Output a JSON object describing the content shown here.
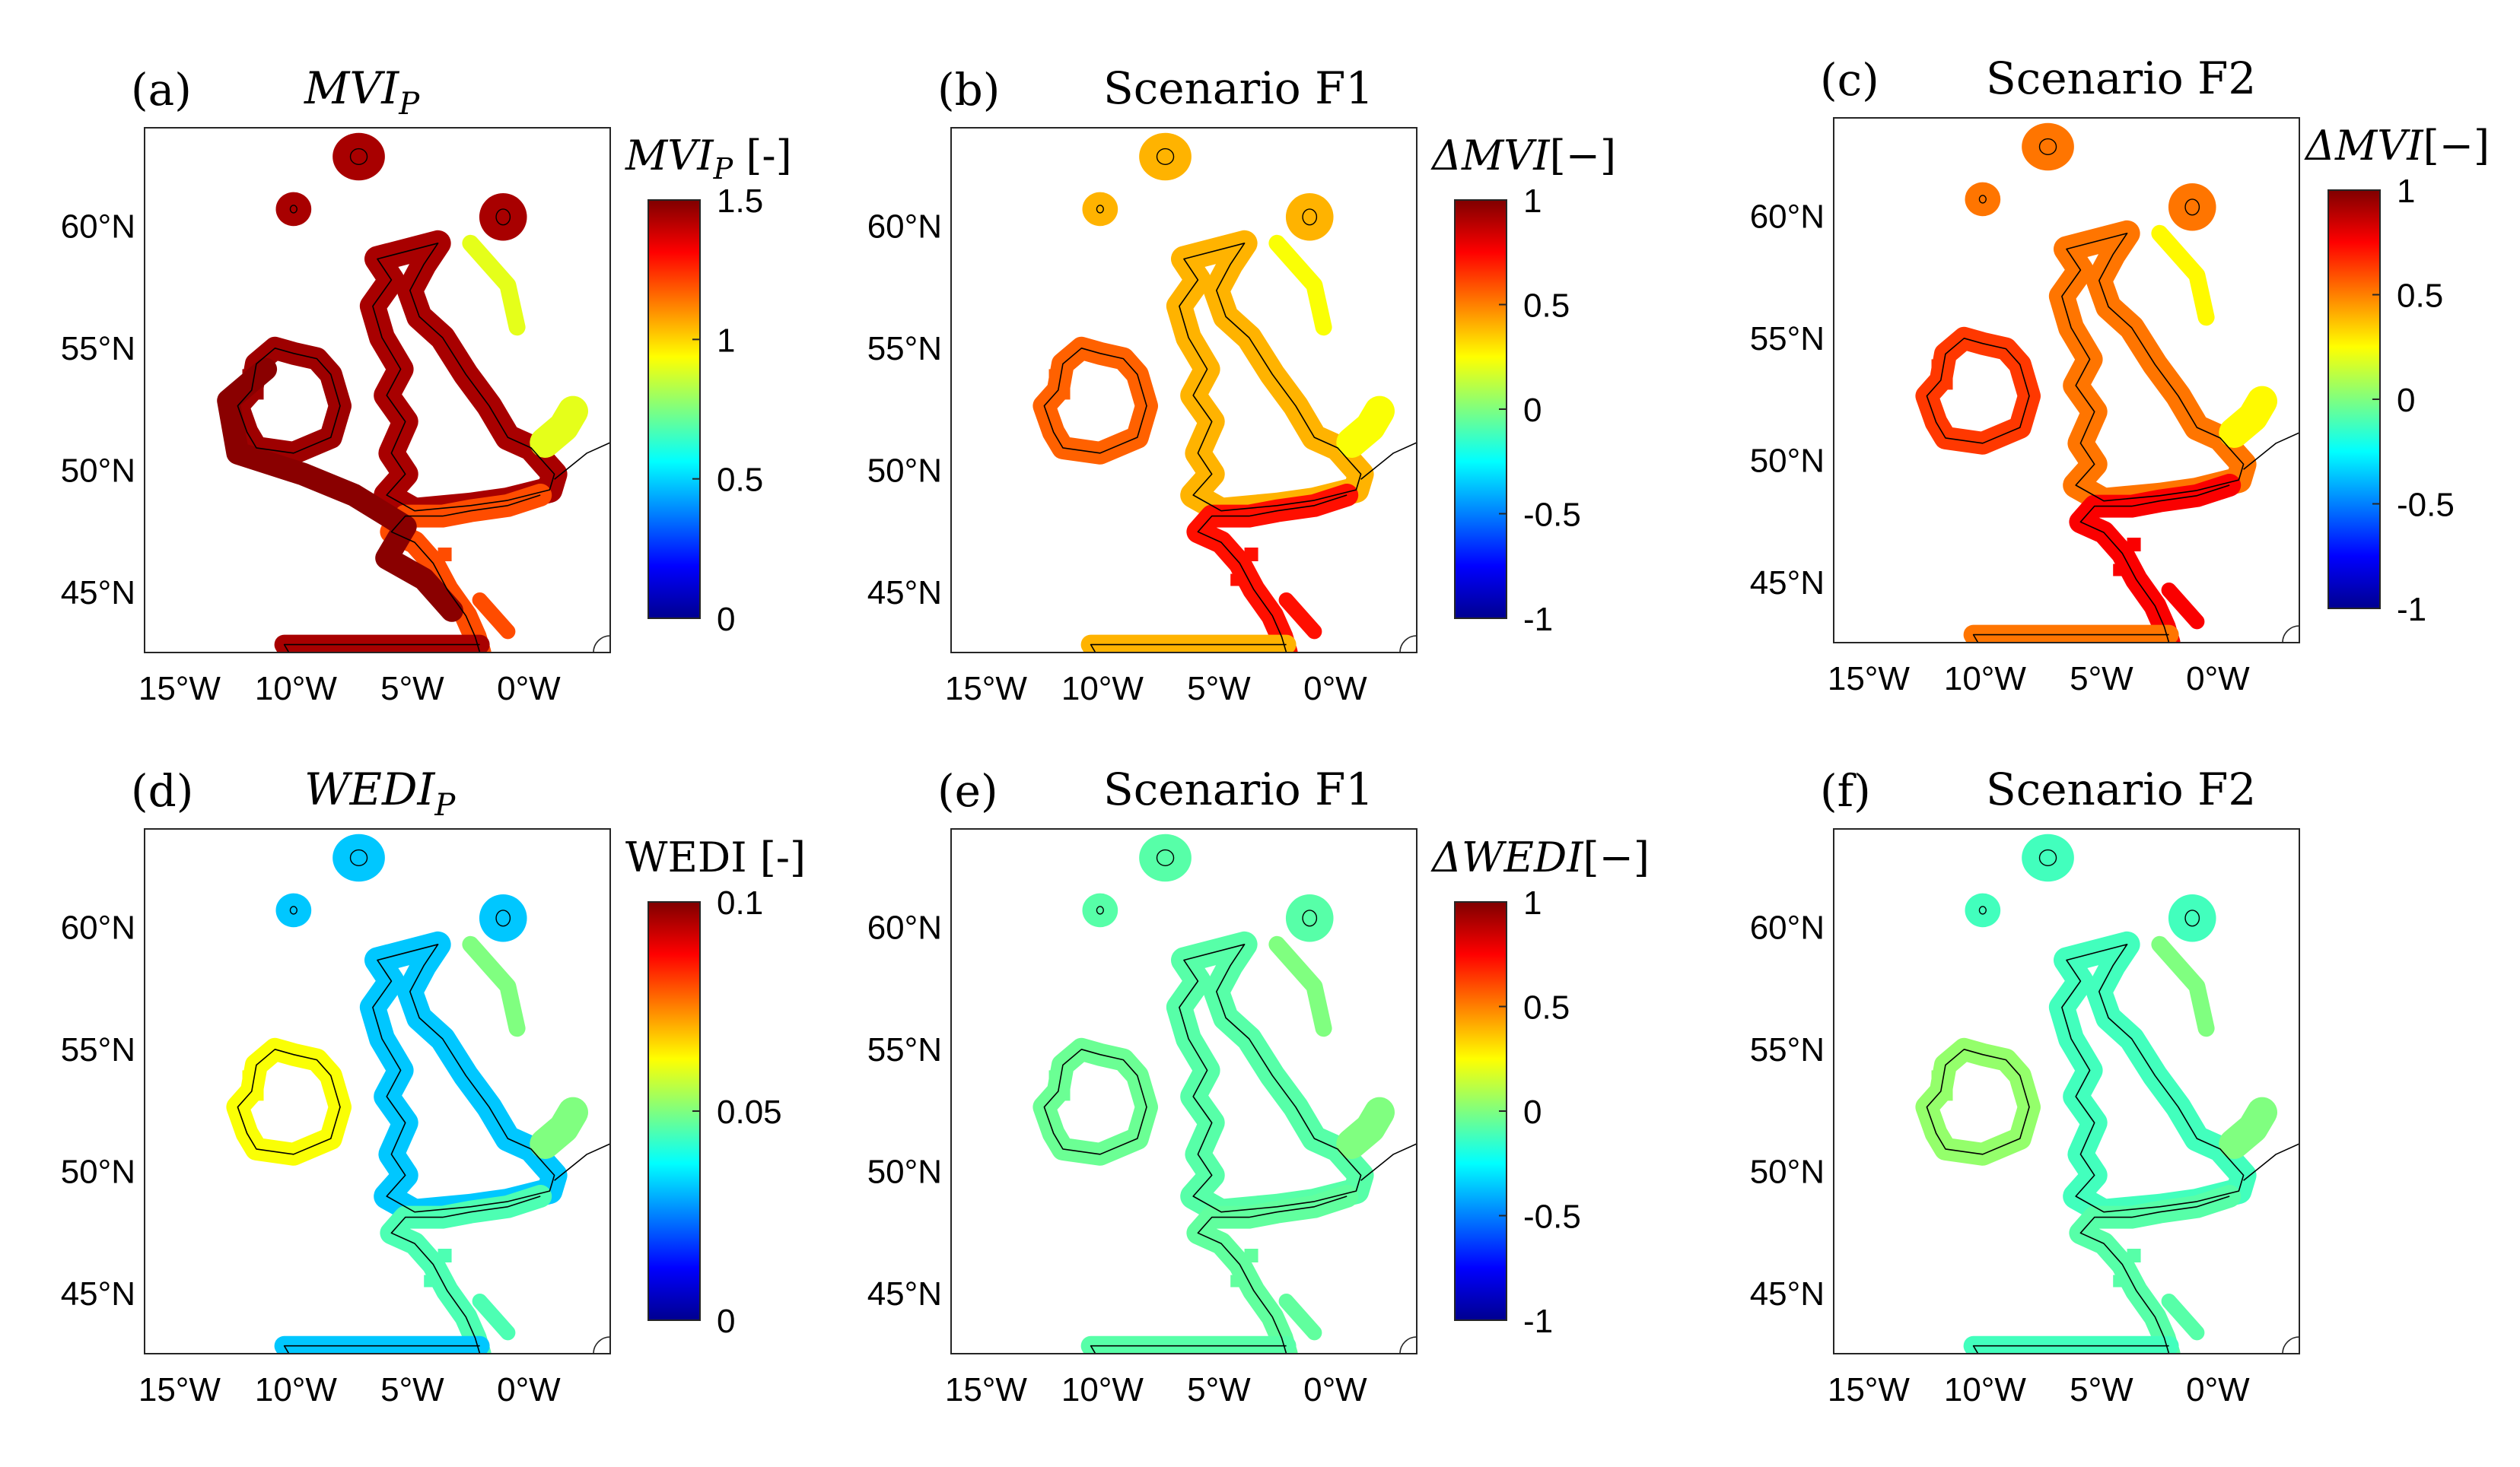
{
  "figure": {
    "panels": [
      {
        "letter": "(a)",
        "title": "MVI",
        "title_sub": "P",
        "title_italic": true,
        "cbar_label": "MVI",
        "cbar_label_sub": "P",
        "cbar_label_tail": " [-]",
        "cbar_ticks": [
          "0",
          "0.5",
          "1",
          "1.5"
        ],
        "mode": "mvip"
      },
      {
        "letter": "(b)",
        "title": "Scenario F1",
        "title_sub": "",
        "title_italic": false,
        "cbar_label": "ΔMVI",
        "cbar_label_sub": "",
        "cbar_label_tail": "[−]",
        "cbar_ticks": [
          "-1",
          "-0.5",
          "0",
          "0.5",
          "1"
        ],
        "mode": "dmvi1"
      },
      {
        "letter": "(c)",
        "title": "Scenario F2",
        "title_sub": "",
        "title_italic": false,
        "cbar_label": "ΔMVI",
        "cbar_label_sub": "",
        "cbar_label_tail": "[−]",
        "cbar_ticks": [
          "-1",
          "-0.5",
          "0",
          "0.5",
          "1"
        ],
        "mode": "dmvi2"
      },
      {
        "letter": "(d)",
        "title": "WEDI",
        "title_sub": "P",
        "title_italic": true,
        "cbar_label": "WEDI",
        "cbar_label_sub": "",
        "cbar_label_tail": " [-]",
        "cbar_ticks": [
          "0",
          "0.05",
          "0.1"
        ],
        "mode": "wedip"
      },
      {
        "letter": "(e)",
        "title": "Scenario F1",
        "title_sub": "",
        "title_italic": false,
        "cbar_label": "ΔWEDI",
        "cbar_label_sub": "",
        "cbar_label_tail": "[−]",
        "cbar_ticks": [
          "-1",
          "-0.5",
          "0",
          "0.5",
          "1"
        ],
        "mode": "dwedi1"
      },
      {
        "letter": "(f)",
        "title": "Scenario F2",
        "title_sub": "",
        "title_italic": false,
        "cbar_label": "",
        "cbar_label_sub": "",
        "cbar_label_tail": "",
        "cbar_ticks": [],
        "mode": "dwedi2"
      }
    ]
  },
  "chart_data": [
    {
      "type": "heatmap",
      "panel": "(a)",
      "title": "MVI_P",
      "x_ticks": [
        "15°W",
        "10°W",
        "5°W",
        "0°W"
      ],
      "y_ticks": [
        "45°N",
        "50°N",
        "55°N",
        "60°N"
      ],
      "xlim": [
        -16.5,
        3.5
      ],
      "ylim": [
        42.5,
        64
      ],
      "colorbar": {
        "label": "MVI_P [-]",
        "range": [
          0,
          1.5
        ],
        "ticks": [
          0,
          0.5,
          1,
          1.5
        ],
        "colormap": "jet"
      },
      "dominant_value": 1.5
    },
    {
      "type": "heatmap",
      "panel": "(b)",
      "title": "Scenario F1",
      "x_ticks": [
        "15°W",
        "10°W",
        "5°W",
        "0°W"
      ],
      "y_ticks": [
        "45°N",
        "50°N",
        "55°N",
        "60°N"
      ],
      "xlim": [
        -16.5,
        3.5
      ],
      "ylim": [
        42.5,
        64
      ],
      "colorbar": {
        "label": "ΔMVI[−]",
        "range": [
          -1,
          1
        ],
        "ticks": [
          -1,
          -0.5,
          0,
          0.5,
          1
        ],
        "colormap": "jet"
      },
      "dominant_value": 0.45
    },
    {
      "type": "heatmap",
      "panel": "(c)",
      "title": "Scenario F2",
      "x_ticks": [
        "15°W",
        "10°W",
        "5°W",
        "0°W"
      ],
      "y_ticks": [
        "45°N",
        "50°N",
        "55°N",
        "60°N"
      ],
      "xlim": [
        -16.5,
        3.5
      ],
      "ylim": [
        42.5,
        64
      ],
      "colorbar": {
        "label": "ΔMVI[−]",
        "range": [
          -1,
          1
        ],
        "ticks": [
          -1,
          -0.5,
          0,
          0.5,
          1
        ],
        "colormap": "jet"
      },
      "dominant_value": 0.55
    },
    {
      "type": "heatmap",
      "panel": "(d)",
      "title": "WEDI_P",
      "x_ticks": [
        "15°W",
        "10°W",
        "5°W",
        "0°W"
      ],
      "y_ticks": [
        "45°N",
        "50°N",
        "55°N",
        "60°N"
      ],
      "xlim": [
        -16.5,
        3.5
      ],
      "ylim": [
        42.5,
        64
      ],
      "colorbar": {
        "label": "WEDI [-]",
        "range": [
          0,
          0.1
        ],
        "ticks": [
          0,
          0.05,
          0.1
        ],
        "colormap": "jet"
      },
      "dominant_value": 0.04
    },
    {
      "type": "heatmap",
      "panel": "(e)",
      "title": "Scenario F1",
      "x_ticks": [
        "15°W",
        "10°W",
        "5°W",
        "0°W"
      ],
      "y_ticks": [
        "45°N",
        "50°N",
        "55°N",
        "60°N"
      ],
      "xlim": [
        -16.5,
        3.5
      ],
      "ylim": [
        42.5,
        64
      ],
      "colorbar": {
        "label": "ΔWEDI[−]",
        "range": [
          -1,
          1
        ],
        "ticks": [
          -1,
          -0.5,
          0,
          0.5,
          1
        ],
        "colormap": "jet"
      },
      "dominant_value": -0.05
    },
    {
      "type": "heatmap",
      "panel": "(f)",
      "title": "Scenario F2",
      "x_ticks": [
        "15°W",
        "10°W",
        "5°W",
        "0°W"
      ],
      "y_ticks": [
        "45°N",
        "50°N",
        "55°N",
        "60°N"
      ],
      "xlim": [
        -16.5,
        3.5
      ],
      "ylim": [
        42.5,
        64
      ],
      "dominant_value": -0.05
    }
  ]
}
